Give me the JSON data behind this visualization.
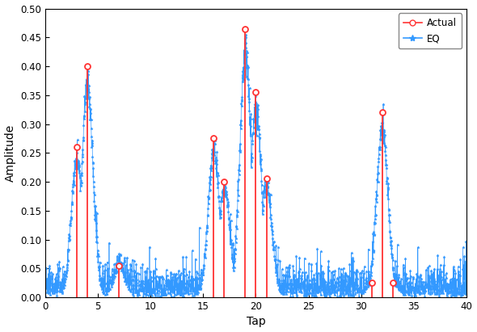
{
  "title": "",
  "xlabel": "Tap",
  "ylabel": "Amplitude",
  "xlim": [
    0,
    40
  ],
  "ylim": [
    0,
    0.5
  ],
  "xticks": [
    0,
    5,
    10,
    15,
    20,
    25,
    30,
    35,
    40
  ],
  "yticks": [
    0,
    0.05,
    0.1,
    0.15,
    0.2,
    0.25,
    0.3,
    0.35,
    0.4,
    0.45,
    0.5
  ],
  "actual_color": "#FF3333",
  "eq_color": "#3399FF",
  "actual_taps": [
    3,
    4,
    7,
    16,
    17,
    19,
    20,
    21,
    31,
    32,
    33
  ],
  "actual_values": [
    0.26,
    0.4,
    0.055,
    0.275,
    0.2,
    0.465,
    0.355,
    0.205,
    0.025,
    0.32,
    0.025
  ],
  "noise_mean": 0.022,
  "seed": 7,
  "n_eq": 2000,
  "figsize": [
    5.9,
    4.11
  ],
  "dpi": 100
}
